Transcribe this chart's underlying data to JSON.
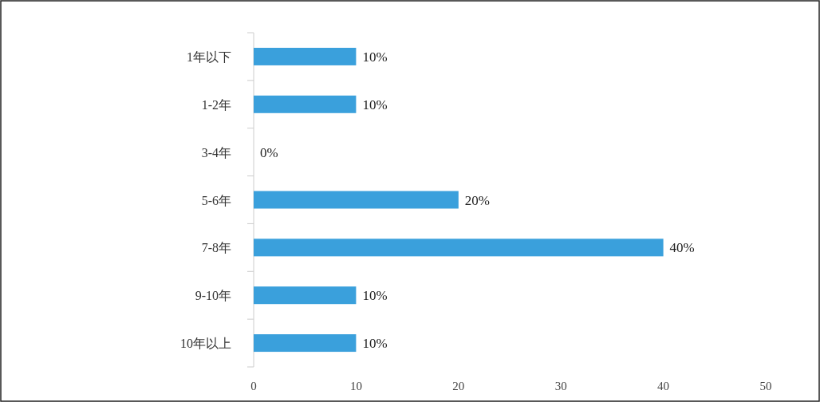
{
  "chart_data": {
    "type": "bar",
    "orientation": "horizontal",
    "categories": [
      "1年以下",
      "1-2年",
      "3-4年",
      "5-6年",
      "7-8年",
      "9-10年",
      "10年以上"
    ],
    "values": [
      10,
      10,
      0,
      20,
      40,
      10,
      10
    ],
    "value_labels": [
      "10%",
      "10%",
      "0%",
      "20%",
      "40%",
      "10%",
      "10%"
    ],
    "color": "#3aa0dc",
    "xlim": [
      0,
      50
    ],
    "xticks": [
      0,
      10,
      20,
      30,
      40,
      50
    ]
  }
}
